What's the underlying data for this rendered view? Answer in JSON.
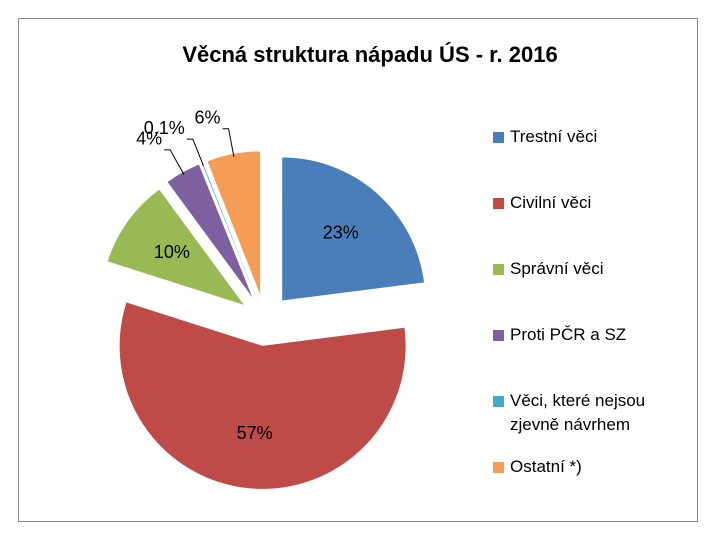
{
  "chart_data": {
    "type": "pie",
    "title": "Věcná struktura nápadu ÚS - r. 2016",
    "categories": [
      "Trestní věci",
      "Civilní věci",
      "Správní věci",
      "Proti PČR a SZ",
      "Věci, které nejsou zjevně návrhem",
      "Ostatní *)"
    ],
    "values": [
      23,
      57,
      10,
      4,
      0.1,
      6
    ],
    "value_labels": [
      "23%",
      "57%",
      "10%",
      "4%",
      "0,1%",
      "6%"
    ],
    "colors": [
      "#4a7ebb",
      "#be4b48",
      "#98b954",
      "#7d60a0",
      "#46aac5",
      "#f59d56"
    ],
    "legend": "right"
  }
}
